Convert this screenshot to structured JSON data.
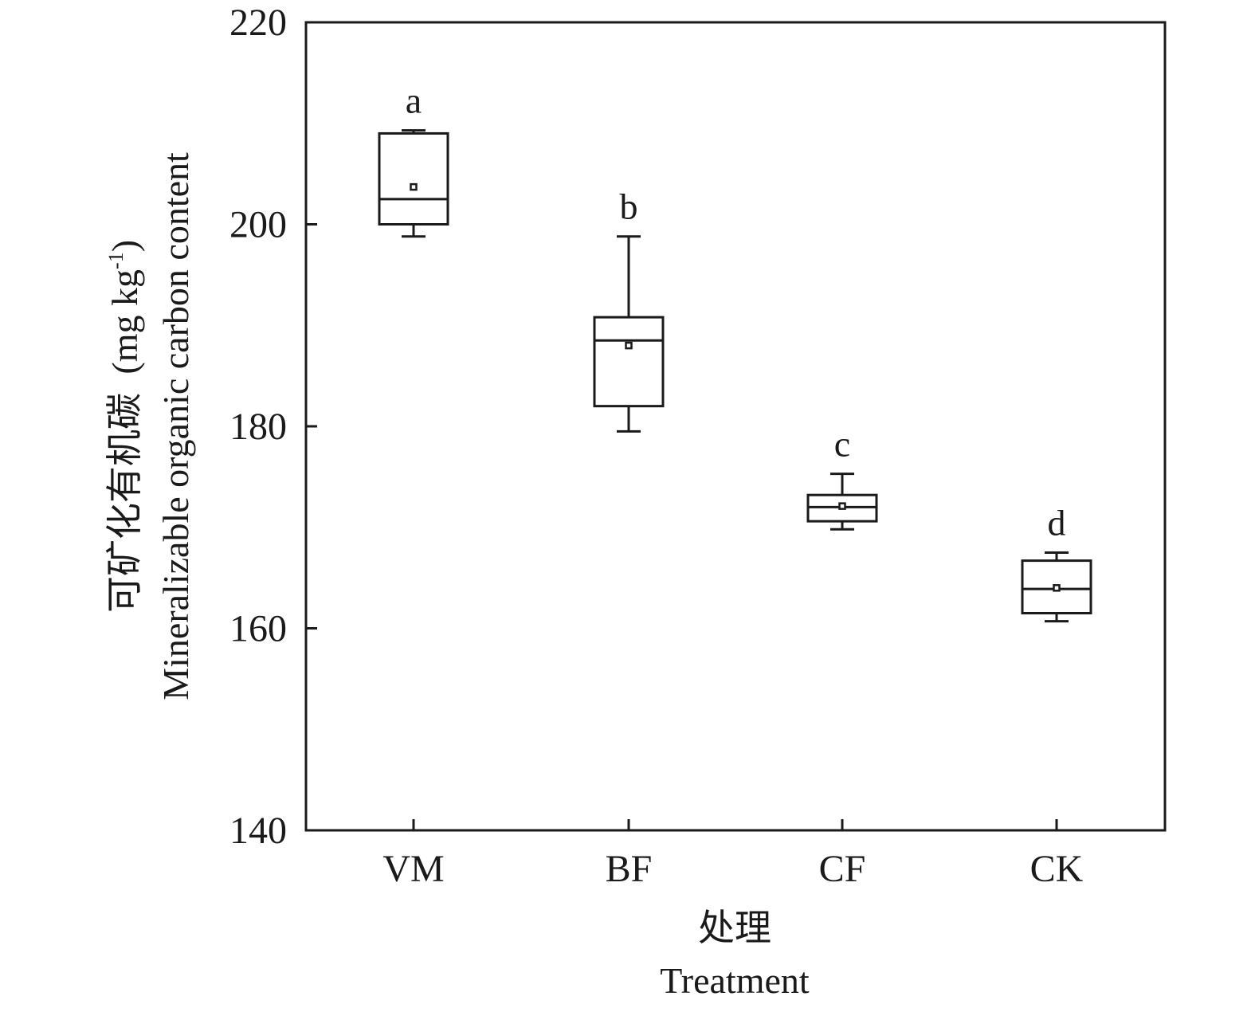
{
  "chart_data": {
    "type": "box",
    "categories": [
      "VM",
      "BF",
      "CF",
      "CK"
    ],
    "boxes": [
      {
        "category": "VM",
        "whisker_low": 198.8,
        "q1": 200.0,
        "median": 202.5,
        "q3": 209.0,
        "whisker_high": 209.3,
        "mean": 203.7,
        "letter": "a"
      },
      {
        "category": "BF",
        "whisker_low": 179.5,
        "q1": 182.0,
        "median": 188.5,
        "q3": 190.8,
        "whisker_high": 198.8,
        "mean": 188.0,
        "letter": "b"
      },
      {
        "category": "CF",
        "whisker_low": 169.8,
        "q1": 170.6,
        "median": 172.0,
        "q3": 173.2,
        "whisker_high": 175.3,
        "mean": 172.1,
        "letter": "c"
      },
      {
        "category": "CK",
        "whisker_low": 160.7,
        "q1": 161.5,
        "median": 163.9,
        "q3": 166.7,
        "whisker_high": 167.5,
        "mean": 164.0,
        "letter": "d"
      }
    ],
    "ylim": [
      140,
      220
    ],
    "yticks": [
      140,
      160,
      180,
      200,
      220
    ],
    "ylabel_cn": "可矿化有机碳",
    "ylabel_unit": "(mg kg",
    "ylabel_unit_sup": "-1",
    "ylabel_unit_close": ")",
    "ylabel_en": "Mineralizable organic carbon content",
    "xlabel_cn": "处理",
    "xlabel_en": "Treatment",
    "grid": false,
    "legend": "none"
  }
}
